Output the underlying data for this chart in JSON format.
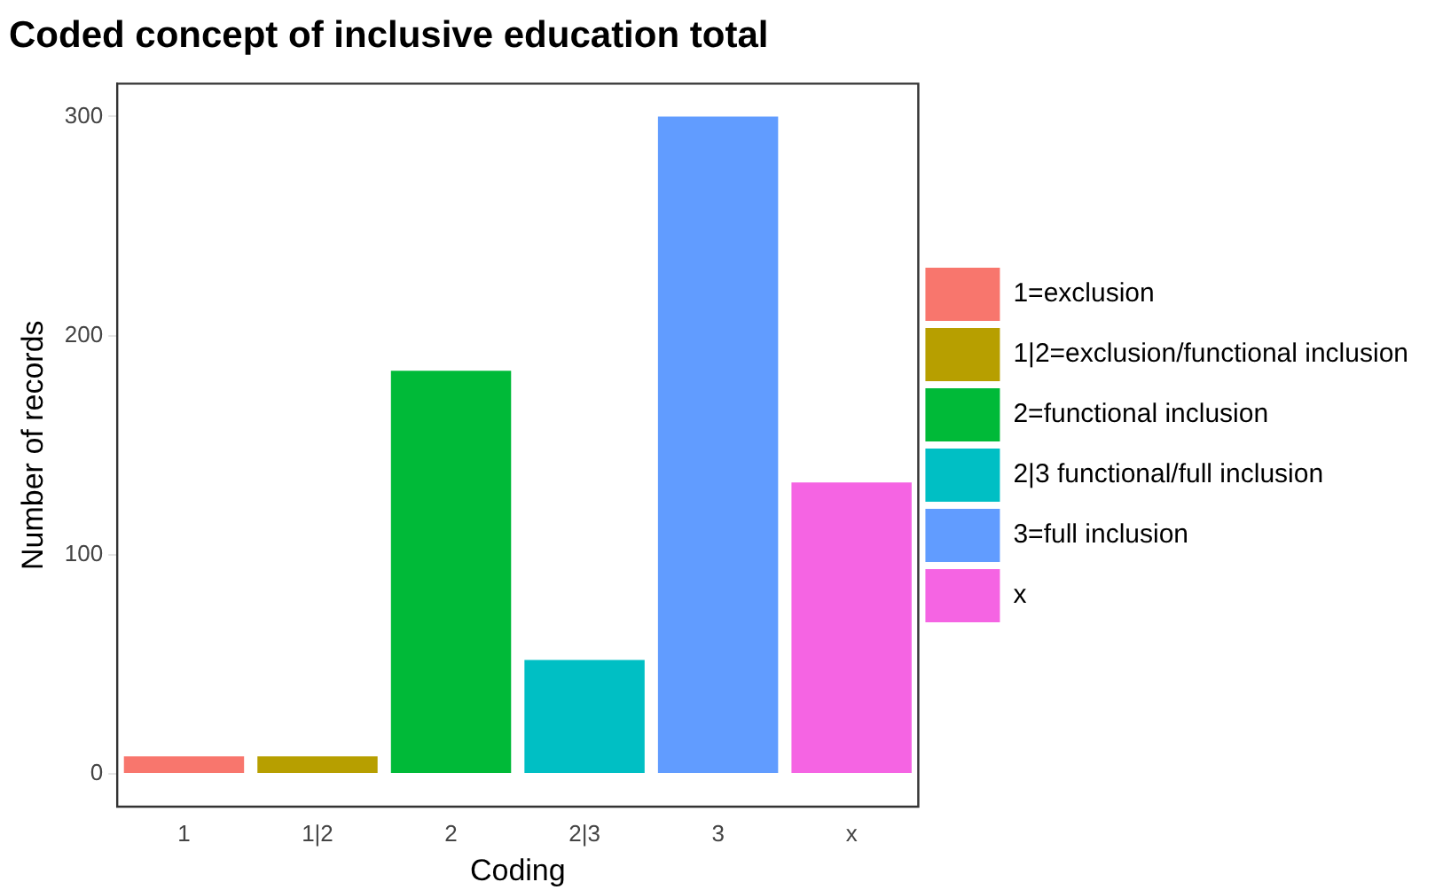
{
  "chart_data": {
    "type": "bar",
    "title": "Coded concept of inclusive education total",
    "xlabel": "Coding",
    "ylabel": "Number of records",
    "categories": [
      "1",
      "1|2",
      "2",
      "2|3",
      "3",
      "x"
    ],
    "series": [
      {
        "name": "1=exclusion",
        "color": "#f8766d",
        "values": [
          8,
          null,
          null,
          null,
          null,
          null
        ]
      },
      {
        "name": "1|2=exclusion/functional inclusion",
        "color": "#b79f00",
        "values": [
          null,
          8,
          null,
          null,
          null,
          null
        ]
      },
      {
        "name": "2=functional inclusion",
        "color": "#00ba38",
        "values": [
          null,
          null,
          184,
          null,
          null,
          null
        ]
      },
      {
        "name": "2|3 functional/full inclusion",
        "color": "#00bfc4",
        "values": [
          null,
          null,
          null,
          52,
          null,
          null
        ]
      },
      {
        "name": "3=full inclusion",
        "color": "#619cff",
        "values": [
          null,
          null,
          null,
          null,
          300,
          null
        ]
      },
      {
        "name": "x",
        "color": "#f564e3",
        "values": [
          null,
          null,
          null,
          null,
          null,
          133
        ]
      }
    ],
    "ylim": [
      -15,
      315
    ],
    "yticks": [
      0,
      100,
      200,
      300
    ],
    "grid": false,
    "legend": "right"
  }
}
